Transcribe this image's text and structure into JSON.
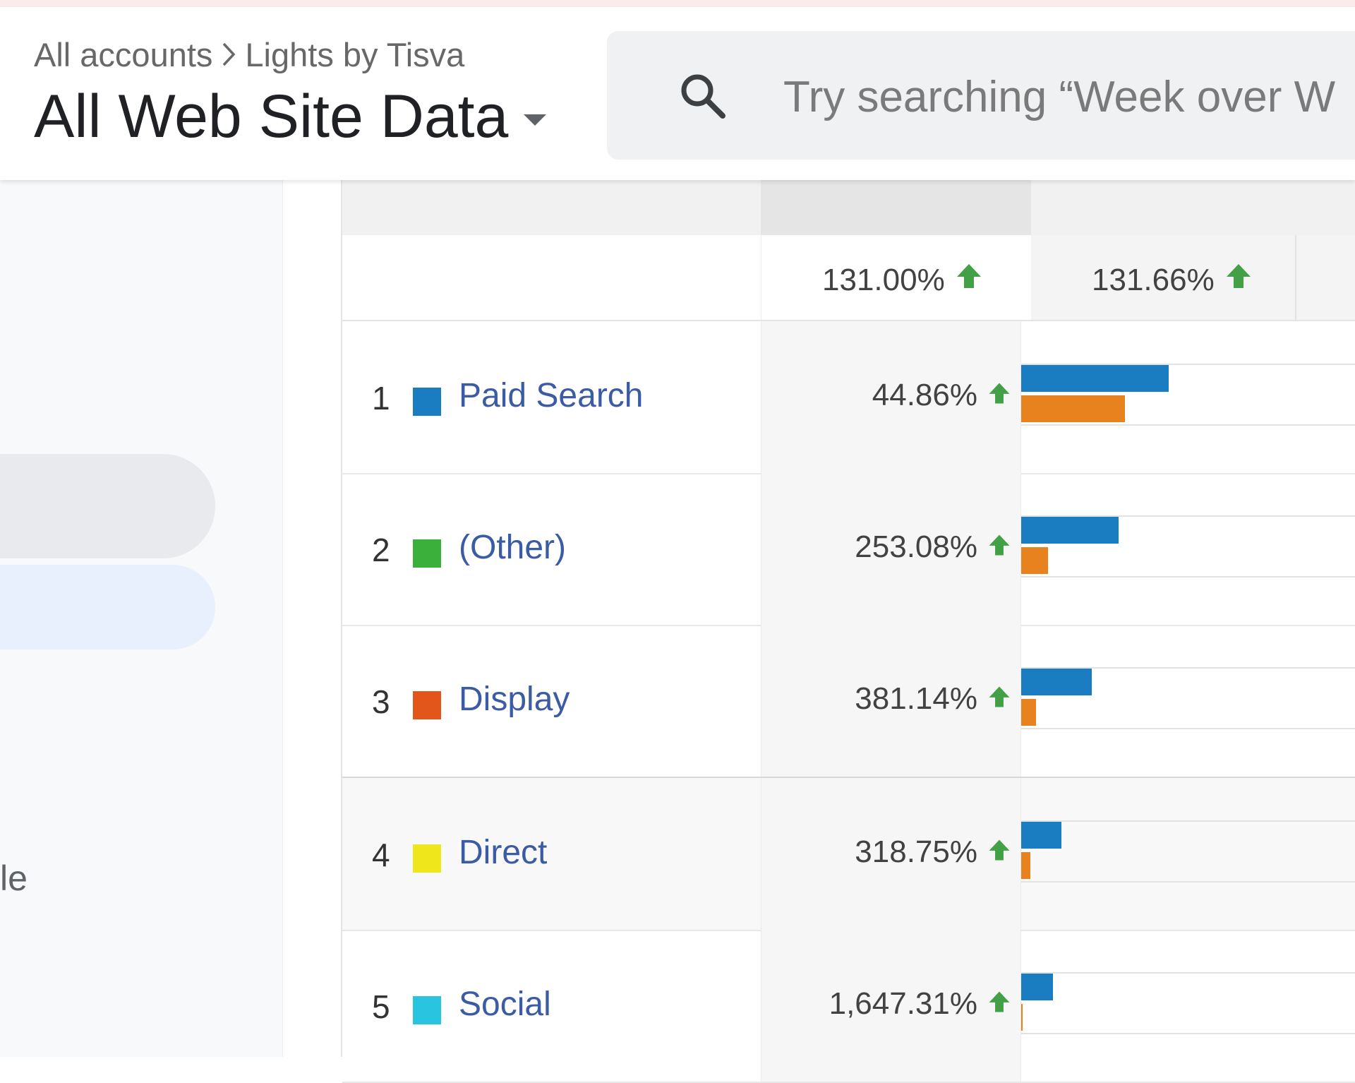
{
  "breadcrumb": {
    "account": "All accounts",
    "property": "Lights by Tisva"
  },
  "view": {
    "title": "All Web Site Data"
  },
  "search": {
    "placeholder": "Try searching “Week over W"
  },
  "sidebar": {
    "partial_label": "le"
  },
  "table": {
    "totals": [
      "131.00%",
      "131.66%"
    ],
    "rows": [
      {
        "rank": "1",
        "label": "Paid Search",
        "color": "#1a7dc2",
        "change": "44.86%",
        "bar_current": 0.44,
        "bar_previous": 0.31
      },
      {
        "rank": "2",
        "label": "(Other)",
        "color": "#3bb03b",
        "change": "253.08%",
        "bar_current": 0.29,
        "bar_previous": 0.08
      },
      {
        "rank": "3",
        "label": "Display",
        "color": "#e2561b",
        "change": "381.14%",
        "bar_current": 0.21,
        "bar_previous": 0.045
      },
      {
        "rank": "4",
        "label": "Direct",
        "color": "#f0e61c",
        "change": "318.75%",
        "bar_current": 0.12,
        "bar_previous": 0.028
      },
      {
        "rank": "5",
        "label": "Social",
        "color": "#29c4e0",
        "change": "1,647.31%",
        "bar_current": 0.095,
        "bar_previous": 0.005
      }
    ]
  },
  "colors": {
    "bar_current": "#1a7dc2",
    "bar_previous": "#e8821e",
    "up_arrow": "#43a047",
    "link": "#3b5ba5"
  }
}
